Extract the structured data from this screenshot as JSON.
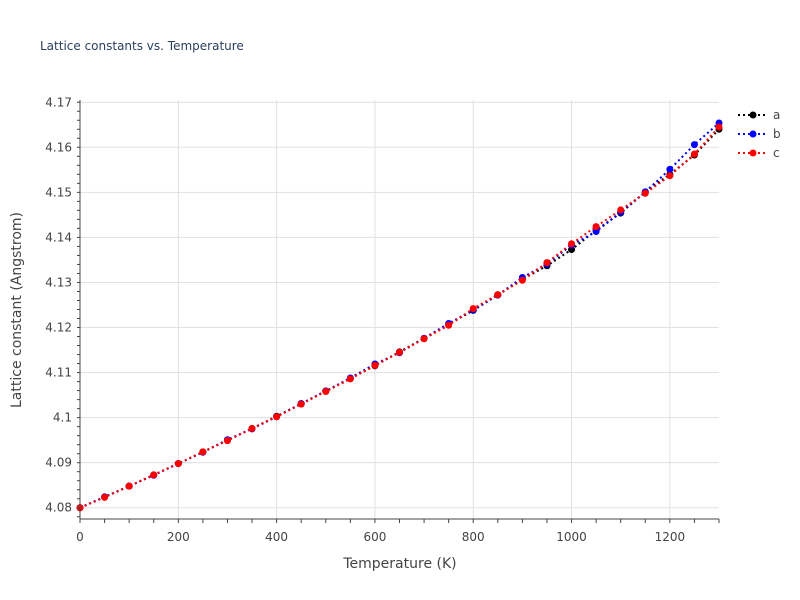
{
  "chart_data": {
    "type": "line",
    "title": "Lattice constants vs. Temperature",
    "xlabel": "Temperature (K)",
    "ylabel": "Lattice constant (Angstrom)",
    "xlim": [
      0,
      1300
    ],
    "ylim": [
      4.0775,
      4.1705
    ],
    "x_ticks": [
      0,
      200,
      400,
      600,
      800,
      1000,
      1200
    ],
    "x_tick_labels": [
      "0",
      "200",
      "400",
      "600",
      "800",
      "1000",
      "1200"
    ],
    "y_ticks": [
      4.08,
      4.09,
      4.1,
      4.11,
      4.12,
      4.13,
      4.14,
      4.15,
      4.16,
      4.17
    ],
    "y_tick_labels": [
      "4.08",
      "4.09",
      "4.1",
      "4.11",
      "4.12",
      "4.13",
      "4.14",
      "4.15",
      "4.16",
      "4.17"
    ],
    "grid": true,
    "legend_position": "top-right",
    "x": [
      0,
      50,
      100,
      150,
      200,
      250,
      300,
      350,
      400,
      450,
      500,
      550,
      600,
      650,
      700,
      750,
      800,
      850,
      900,
      950,
      1000,
      1050,
      1100,
      1150,
      1200,
      1250,
      1300
    ],
    "series": [
      {
        "name": "a",
        "color": "#000000",
        "values": [
          4.08,
          4.0824,
          4.0848,
          4.0873,
          4.0898,
          4.0924,
          4.095,
          4.0976,
          4.1003,
          4.1031,
          4.1059,
          4.1087,
          4.1115,
          4.1146,
          4.1176,
          4.1207,
          4.1238,
          4.1272,
          4.1307,
          4.1337,
          4.1373,
          4.1416,
          4.1454,
          4.1501,
          4.154,
          4.1583,
          4.164
        ]
      },
      {
        "name": "b",
        "color": "#0000ff",
        "values": [
          4.08,
          4.0824,
          4.0848,
          4.0872,
          4.0898,
          4.0923,
          4.0951,
          4.0975,
          4.1002,
          4.1031,
          4.1059,
          4.1088,
          4.1119,
          4.1144,
          4.1176,
          4.1209,
          4.1239,
          4.1272,
          4.1311,
          4.1341,
          4.1383,
          4.1413,
          4.1456,
          4.1501,
          4.1551,
          4.1606,
          4.1654
        ]
      },
      {
        "name": "c",
        "color": "#ff0000",
        "values": [
          4.08,
          4.0823,
          4.0848,
          4.0873,
          4.0898,
          4.0924,
          4.0949,
          4.0976,
          4.1002,
          4.103,
          4.1058,
          4.1086,
          4.1116,
          4.1145,
          4.1175,
          4.1205,
          4.1242,
          4.1273,
          4.1305,
          4.1344,
          4.1386,
          4.1424,
          4.1461,
          4.1498,
          4.1537,
          4.1585,
          4.1645
        ]
      }
    ]
  }
}
